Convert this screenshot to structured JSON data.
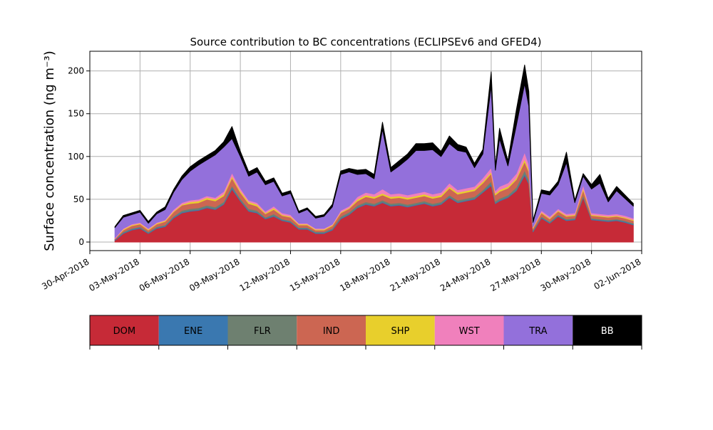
{
  "chart_data": {
    "type": "area",
    "stacked": true,
    "title": "Source contribution to BC concentrations (ECLIPSEv6 and GFED4)",
    "xlabel": "",
    "ylabel": "Surface concentration (ng m⁻³)",
    "ylim": [
      -10,
      223
    ],
    "xlim": [
      "2018-04-30",
      "2018-06-02"
    ],
    "grid": true,
    "yticks": [
      0,
      50,
      100,
      150,
      200
    ],
    "xticks": [
      "2018-04-30",
      "2018-05-03",
      "2018-05-06",
      "2018-05-09",
      "2018-05-12",
      "2018-05-15",
      "2018-05-18",
      "2018-05-21",
      "2018-05-24",
      "2018-05-27",
      "2018-05-30",
      "2018-06-02"
    ],
    "xtick_labels": [
      "30-Apr-2018",
      "03-May-2018",
      "06-May-2018",
      "09-May-2018",
      "12-May-2018",
      "15-May-2018",
      "18-May-2018",
      "21-May-2018",
      "24-May-2018",
      "27-May-2018",
      "30-May-2018",
      "02-Jun-2018"
    ],
    "x": [
      "2018-05-01T12",
      "2018-05-02T00",
      "2018-05-02T12",
      "2018-05-03T00",
      "2018-05-03T12",
      "2018-05-04T00",
      "2018-05-04T12",
      "2018-05-05T00",
      "2018-05-05T12",
      "2018-05-06T00",
      "2018-05-06T12",
      "2018-05-07T00",
      "2018-05-07T12",
      "2018-05-08T00",
      "2018-05-08T12",
      "2018-05-09T00",
      "2018-05-09T12",
      "2018-05-10T00",
      "2018-05-10T12",
      "2018-05-11T00",
      "2018-05-11T12",
      "2018-05-12T00",
      "2018-05-12T12",
      "2018-05-13T00",
      "2018-05-13T12",
      "2018-05-14T00",
      "2018-05-14T12",
      "2018-05-15T00",
      "2018-05-15T12",
      "2018-05-16T00",
      "2018-05-16T12",
      "2018-05-17T00",
      "2018-05-17T12",
      "2018-05-18T00",
      "2018-05-18T12",
      "2018-05-19T00",
      "2018-05-19T12",
      "2018-05-20T00",
      "2018-05-20T12",
      "2018-05-21T00",
      "2018-05-21T12",
      "2018-05-22T00",
      "2018-05-22T12",
      "2018-05-23T00",
      "2018-05-23T12",
      "2018-05-24T00",
      "2018-05-24T06",
      "2018-05-24T12",
      "2018-05-25T00",
      "2018-05-25T12",
      "2018-05-26T00",
      "2018-05-26T06",
      "2018-05-26T12",
      "2018-05-27T00",
      "2018-05-27T12",
      "2018-05-28T00",
      "2018-05-28T12",
      "2018-05-29T00",
      "2018-05-29T12",
      "2018-05-30T00",
      "2018-05-30T12",
      "2018-05-31T00",
      "2018-05-31T12",
      "2018-06-01T00",
      "2018-06-01T12"
    ],
    "series": [
      {
        "name": "DOM",
        "values": [
          2,
          10,
          14,
          16,
          10,
          16,
          18,
          28,
          34,
          36,
          37,
          40,
          38,
          44,
          62,
          48,
          36,
          34,
          27,
          30,
          25,
          23,
          15,
          15,
          10,
          10,
          14,
          27,
          32,
          40,
          44,
          42,
          46,
          42,
          43,
          41,
          43,
          45,
          42,
          44,
          52,
          46,
          48,
          50,
          58,
          66,
          45,
          48,
          52,
          60,
          78,
          68,
          12,
          28,
          22,
          30,
          25,
          26,
          52,
          26,
          25,
          24,
          25,
          23,
          20
        ]
      },
      {
        "name": "ENE",
        "values": [
          1,
          1,
          1,
          1,
          1,
          1,
          1,
          1,
          1,
          1,
          1,
          1,
          1,
          1,
          2,
          1,
          1,
          1,
          1,
          1,
          1,
          1,
          1,
          1,
          1,
          1,
          1,
          1,
          1,
          1,
          1,
          1,
          1,
          1,
          1,
          1,
          1,
          1,
          1,
          1,
          1,
          1,
          1,
          1,
          1,
          2,
          1,
          1,
          1,
          1,
          2,
          2,
          1,
          1,
          1,
          1,
          1,
          1,
          1,
          1,
          1,
          1,
          1,
          1,
          1
        ]
      },
      {
        "name": "FLR",
        "values": [
          0,
          1,
          1,
          1,
          1,
          1,
          1,
          1,
          2,
          2,
          2,
          2,
          2,
          2,
          2,
          2,
          2,
          2,
          1,
          2,
          1,
          1,
          1,
          1,
          1,
          1,
          1,
          2,
          2,
          2,
          2,
          2,
          2,
          2,
          2,
          2,
          2,
          2,
          2,
          2,
          2,
          2,
          2,
          2,
          2,
          3,
          2,
          2,
          2,
          3,
          4,
          3,
          1,
          1,
          1,
          1,
          1,
          1,
          2,
          1,
          1,
          1,
          1,
          1,
          1
        ]
      },
      {
        "name": "IND",
        "values": [
          1,
          2,
          3,
          3,
          2,
          3,
          4,
          5,
          6,
          6,
          6,
          7,
          7,
          7,
          9,
          7,
          6,
          5,
          4,
          5,
          4,
          4,
          3,
          3,
          2,
          2,
          3,
          4,
          4,
          5,
          6,
          6,
          6,
          6,
          6,
          6,
          6,
          6,
          6,
          6,
          8,
          7,
          7,
          7,
          8,
          9,
          7,
          8,
          8,
          9,
          10,
          9,
          2,
          4,
          3,
          4,
          3,
          3,
          6,
          3,
          3,
          3,
          3,
          3,
          3
        ]
      },
      {
        "name": "SHP",
        "values": [
          0,
          1,
          1,
          1,
          1,
          1,
          1,
          1,
          1,
          2,
          2,
          2,
          2,
          2,
          2,
          2,
          2,
          2,
          1,
          2,
          1,
          1,
          1,
          1,
          1,
          1,
          1,
          1,
          1,
          2,
          2,
          2,
          2,
          2,
          2,
          2,
          2,
          2,
          2,
          2,
          2,
          2,
          2,
          2,
          2,
          2,
          2,
          2,
          2,
          2,
          3,
          3,
          1,
          1,
          1,
          1,
          1,
          1,
          2,
          1,
          1,
          1,
          1,
          1,
          1
        ]
      },
      {
        "name": "WST",
        "values": [
          1,
          1,
          1,
          1,
          1,
          1,
          1,
          2,
          2,
          2,
          2,
          2,
          2,
          3,
          4,
          3,
          2,
          2,
          2,
          2,
          2,
          2,
          1,
          1,
          1,
          1,
          1,
          2,
          2,
          3,
          3,
          3,
          5,
          3,
          3,
          3,
          3,
          3,
          3,
          3,
          4,
          3,
          3,
          3,
          4,
          5,
          3,
          4,
          4,
          5,
          8,
          6,
          1,
          2,
          2,
          2,
          2,
          2,
          4,
          2,
          2,
          2,
          2,
          2,
          2
        ]
      },
      {
        "name": "TRA",
        "values": [
          12,
          13,
          11,
          12,
          6,
          10,
          12,
          20,
          27,
          34,
          40,
          42,
          50,
          52,
          40,
          37,
          28,
          36,
          31,
          29,
          20,
          25,
          12,
          16,
          12,
          14,
          20,
          42,
          40,
          26,
          22,
          18,
          70,
          26,
          32,
          42,
          50,
          48,
          52,
          42,
          46,
          46,
          42,
          22,
          28,
          96,
          24,
          56,
          20,
          56,
          80,
          68,
          5,
          20,
          25,
          28,
          60,
          12,
          10,
          28,
          36,
          15,
          27,
          20,
          14
        ]
      },
      {
        "name": "BB",
        "values": [
          1,
          2,
          2,
          2,
          2,
          2,
          3,
          3,
          4,
          5,
          5,
          5,
          5,
          6,
          14,
          6,
          5,
          5,
          4,
          4,
          3,
          3,
          2,
          2,
          2,
          2,
          3,
          4,
          4,
          5,
          5,
          5,
          8,
          5,
          6,
          6,
          8,
          8,
          8,
          6,
          9,
          7,
          6,
          5,
          5,
          16,
          5,
          12,
          6,
          18,
          22,
          17,
          2,
          4,
          4,
          4,
          12,
          3,
          3,
          5,
          10,
          4,
          5,
          4,
          3
        ]
      }
    ],
    "colors": {
      "DOM": "#c62a37",
      "ENE": "#3a78b0",
      "FLR": "#6e8070",
      "IND": "#cc6652",
      "SHP": "#e8cf2c",
      "WST": "#f080bc",
      "TRA": "#9370db",
      "BB": "#000000"
    },
    "legend": {
      "placement": "bottom",
      "style": "colorbar",
      "labels": [
        "DOM",
        "ENE",
        "FLR",
        "IND",
        "SHP",
        "WST",
        "TRA",
        "BB"
      ]
    }
  }
}
